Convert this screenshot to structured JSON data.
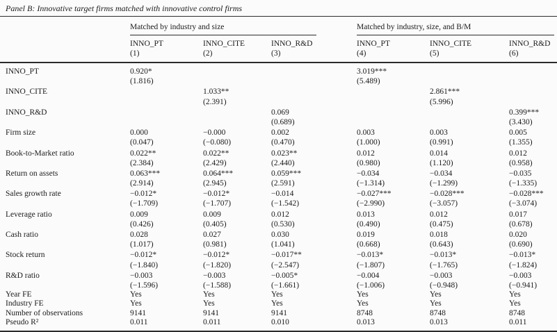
{
  "panel_title": "Panel B: Innovative target firms matched with innovative control firms",
  "table": {
    "groups": [
      {
        "label": "Matched by industry and size"
      },
      {
        "label": "Matched by industry, size, and B/M"
      }
    ],
    "columns": [
      {
        "name": "INNO_PT",
        "number": "(1)"
      },
      {
        "name": "INNO_CITE",
        "number": "(2)"
      },
      {
        "name": "INNO_R&D",
        "number": "(3)"
      },
      {
        "name": "INNO_PT",
        "number": "(4)"
      },
      {
        "name": "INNO_CITE",
        "number": "(5)"
      },
      {
        "name": "INNO_R&D",
        "number": "(6)"
      }
    ],
    "coef_rows": [
      {
        "label": "INNO_PT",
        "coefs": [
          "0.920*",
          "",
          "",
          "3.019***",
          "",
          ""
        ],
        "tstats": [
          "(1.816)",
          "",
          "",
          "(5.489)",
          "",
          ""
        ]
      },
      {
        "label": "INNO_CITE",
        "coefs": [
          "",
          "1.033**",
          "",
          "",
          "2.861***",
          ""
        ],
        "tstats": [
          "",
          "(2.391)",
          "",
          "",
          "(5.996)",
          ""
        ]
      },
      {
        "label": "INNO_R&D",
        "coefs": [
          "",
          "",
          "0.069",
          "",
          "",
          "0.399***"
        ],
        "tstats": [
          "",
          "",
          "(0.689)",
          "",
          "",
          "(3.430)"
        ]
      },
      {
        "label": "Firm size",
        "coefs": [
          "0.000",
          "−0.000",
          "0.002",
          "0.003",
          "0.003",
          "0.005"
        ],
        "tstats": [
          "(0.047)",
          "(−0.080)",
          "(0.470)",
          "(1.000)",
          "(0.991)",
          "(1.355)"
        ]
      },
      {
        "label": "Book-to-Market ratio",
        "coefs": [
          "0.022**",
          "0.022**",
          "0.023**",
          "0.012",
          "0.014",
          "0.012"
        ],
        "tstats": [
          "(2.384)",
          "(2.429)",
          "(2.440)",
          "(0.980)",
          "(1.120)",
          "(0.958)"
        ]
      },
      {
        "label": "Return on assets",
        "coefs": [
          "0.063***",
          "0.064***",
          "0.059***",
          "−0.034",
          "−0.034",
          "−0.035"
        ],
        "tstats": [
          "(2.914)",
          "(2.945)",
          "(2.591)",
          "(−1.314)",
          "(−1.299)",
          "(−1.335)"
        ]
      },
      {
        "label": "Sales growth rate",
        "coefs": [
          "−0.012*",
          "−0.012*",
          "−0.014",
          "−0.027***",
          "−0.028***",
          "−0.028***"
        ],
        "tstats": [
          "(−1.709)",
          "(−1.707)",
          "(−1.542)",
          "(−2.990)",
          "(−3.057)",
          "(−3.074)"
        ]
      },
      {
        "label": "Leverage ratio",
        "coefs": [
          "0.009",
          "0.009",
          "0.012",
          "0.013",
          "0.012",
          "0.017"
        ],
        "tstats": [
          "(0.426)",
          "(0.405)",
          "(0.530)",
          "(0.490)",
          "(0.475)",
          "(0.678)"
        ]
      },
      {
        "label": "Cash ratio",
        "coefs": [
          "0.028",
          "0.027",
          "0.030",
          "0.019",
          "0.018",
          "0.020"
        ],
        "tstats": [
          "(1.017)",
          "(0.981)",
          "(1.041)",
          "(0.668)",
          "(0.643)",
          "(0.690)"
        ]
      },
      {
        "label": "Stock return",
        "coefs": [
          "−0.012*",
          "−0.012*",
          "−0.017**",
          "−0.013*",
          "−0.013*",
          "−0.013*"
        ],
        "tstats": [
          "(−1.840)",
          "(−1.820)",
          "(−2.547)",
          "(−1.807)",
          "(−1.765)",
          "(−1.824)"
        ]
      },
      {
        "label": "R&D ratio",
        "coefs": [
          "−0.003",
          "−0.003",
          "−0.005*",
          "−0.004",
          "−0.003",
          "−0.003"
        ],
        "tstats": [
          "(−1.596)",
          "(−1.588)",
          "(−1.661)",
          "(−1.006)",
          "(−0.948)",
          "(−0.941)"
        ]
      }
    ],
    "summary_rows": [
      {
        "label": "Year FE",
        "values": [
          "Yes",
          "Yes",
          "Yes",
          "Yes",
          "Yes",
          "Yes"
        ]
      },
      {
        "label": "Industry FE",
        "values": [
          "Yes",
          "Yes",
          "Yes",
          "Yes",
          "Yes",
          "Yes"
        ]
      },
      {
        "label": "Number of observations",
        "values": [
          "9141",
          "9141",
          "9141",
          "8748",
          "8748",
          "8748"
        ]
      },
      {
        "label": "Pseudo R²",
        "values": [
          "0.011",
          "0.011",
          "0.010",
          "0.013",
          "0.013",
          "0.011"
        ]
      }
    ]
  }
}
